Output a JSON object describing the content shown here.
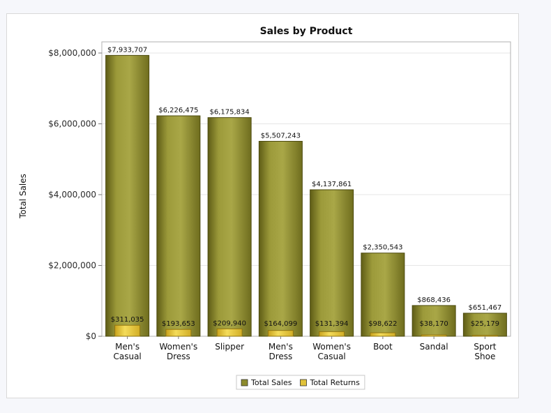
{
  "chart_data": {
    "type": "bar",
    "title": "Sales by Product",
    "xlabel": "",
    "ylabel": "Total Sales",
    "ylim": [
      0,
      8000000
    ],
    "yticks": [
      "$0",
      "$2,000,000",
      "$4,000,000",
      "$6,000,000",
      "$8,000,000"
    ],
    "ytick_values": [
      0,
      2000000,
      4000000,
      6000000,
      8000000
    ],
    "categories": [
      [
        "Men's",
        "Casual"
      ],
      [
        "Women's",
        "Dress"
      ],
      [
        "Slipper"
      ],
      [
        "Men's",
        "Dress"
      ],
      [
        "Women's",
        "Casual"
      ],
      [
        "Boot"
      ],
      [
        "Sandal"
      ],
      [
        "Sport",
        "Shoe"
      ]
    ],
    "grid": true,
    "legend_position": "bottom",
    "series": [
      {
        "name": "Total Sales",
        "color": "#8c8a2c",
        "values": [
          7933707,
          6226475,
          6175834,
          5507243,
          4137861,
          2350543,
          868436,
          651467
        ],
        "labels": [
          "$7,933,707",
          "$6,226,475",
          "$6,175,834",
          "$5,507,243",
          "$4,137,861",
          "$2,350,543",
          "$868,436",
          "$651,467"
        ]
      },
      {
        "name": "Total Returns",
        "color": "#e0c23a",
        "values": [
          311035,
          193653,
          209940,
          164099,
          131394,
          98622,
          38170,
          25179
        ],
        "labels": [
          "$311,035",
          "$193,653",
          "$209,940",
          "$164,099",
          "$131,394",
          "$98,622",
          "$38,170",
          "$25,179"
        ]
      }
    ]
  }
}
